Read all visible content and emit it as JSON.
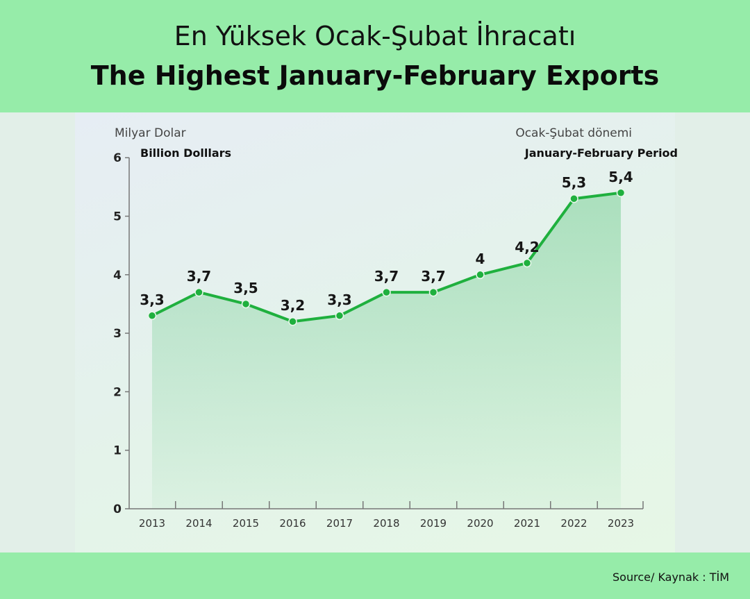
{
  "header": {
    "title_tr": "En Yüksek Ocak-Şubat İhracatı",
    "title_en": "The Highest January-February Exports"
  },
  "footer": {
    "source": "Source/ Kaynak : TİM"
  },
  "colors": {
    "header_bg": "#96eca9",
    "line": "#1fb03e",
    "point": "#1fb03e",
    "area": "#2fb858"
  },
  "chart_data": {
    "type": "area",
    "title": "",
    "unit_label_tr": "Milyar Dolar",
    "unit_label_en": "Billion Dolllars",
    "period_label_tr": "Ocak-Şubat dönemi",
    "period_label_en": "January-February Period",
    "x": [
      "2013",
      "2014",
      "2015",
      "2016",
      "2017",
      "2018",
      "2019",
      "2020",
      "2021",
      "2022",
      "2023"
    ],
    "values": [
      3.3,
      3.7,
      3.5,
      3.2,
      3.3,
      3.7,
      3.7,
      4,
      4.2,
      5.3,
      5.4
    ],
    "data_labels": [
      "3,3",
      "3,7",
      "3,5",
      "3,2",
      "3,3",
      "3,7",
      "3,7",
      "4",
      "4,2",
      "5,3",
      "5,4"
    ],
    "yticks": [
      "0",
      "1",
      "2",
      "3",
      "4",
      "5",
      "6"
    ],
    "ylim": [
      0,
      6
    ],
    "grid": false,
    "legend": "none"
  }
}
